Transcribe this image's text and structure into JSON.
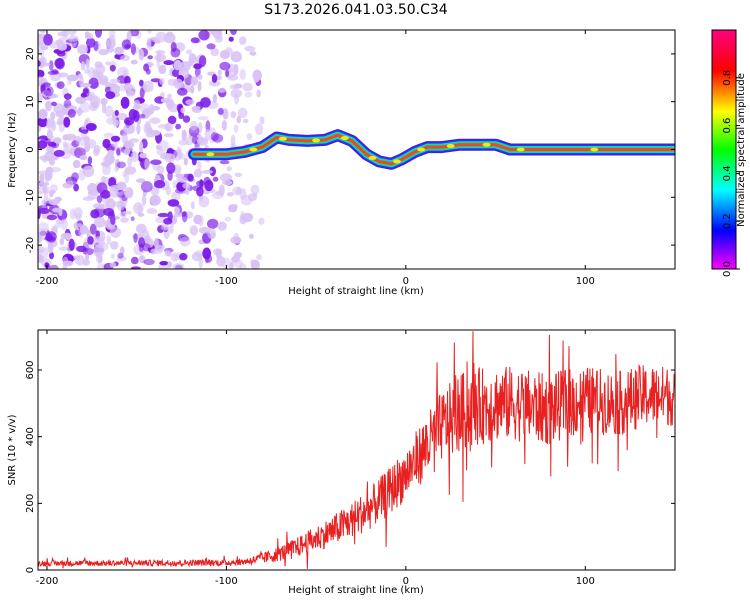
{
  "title": "S173.2026.041.03.50.C34",
  "colors": {
    "signal_line": "#e82020",
    "noise_dark": "#7a18e8",
    "noise_light": "#d8c2f5",
    "axis": "#000000"
  },
  "chart_data": [
    {
      "type": "heatmap",
      "name": "spectrogram",
      "xlabel": "Height of straight line (km)",
      "ylabel": "Frequency (Hz)",
      "xlim": [
        -205,
        150
      ],
      "ylim": [
        -25,
        25
      ],
      "xticks": [
        -200,
        -100,
        0,
        100
      ],
      "yticks": [
        -20,
        -10,
        0,
        10,
        20
      ],
      "tone_track": {
        "x": [
          -118,
          -100,
          -90,
          -80,
          -72,
          -65,
          -55,
          -45,
          -38,
          -30,
          -22,
          -15,
          -8,
          -2,
          5,
          12,
          20,
          30,
          40,
          50,
          58,
          70,
          90,
          120,
          150
        ],
        "freq": [
          -1,
          -1,
          -0.5,
          0.5,
          2.5,
          2,
          1.8,
          2,
          3,
          1.8,
          -1,
          -2.5,
          -3,
          -2,
          -0.5,
          0.5,
          0.5,
          1,
          1,
          1,
          0,
          0,
          0,
          0,
          0
        ]
      },
      "colorbar": {
        "label": "Normalized spectral amplitude",
        "range": [
          0,
          1
        ],
        "ticks": [
          "0.0",
          "0.2",
          "0.4",
          "0.6",
          "0.8"
        ]
      }
    },
    {
      "type": "line",
      "name": "snr",
      "xlabel": "Height of straight line (km)",
      "ylabel": "SNR (10 * v/v)",
      "xlim": [
        -205,
        150
      ],
      "ylim": [
        0,
        720
      ],
      "xticks": [
        -200,
        -100,
        0,
        100
      ],
      "yticks": [
        0,
        200,
        400,
        600
      ],
      "trend": {
        "x": [
          -205,
          -100,
          -90,
          -80,
          -70,
          -60,
          -50,
          -40,
          -30,
          -20,
          -10,
          0,
          10,
          20,
          30,
          40,
          50,
          60,
          70,
          80,
          90,
          100,
          110,
          120,
          130,
          140,
          150
        ],
        "y": [
          20,
          22,
          25,
          35,
          50,
          70,
          95,
          120,
          150,
          185,
          230,
          290,
          360,
          430,
          470,
          490,
          500,
          500,
          490,
          480,
          500,
          510,
          505,
          500,
          520,
          525,
          520
        ]
      },
      "noise_amplitude": [
        {
          "x": -205,
          "amp": 8
        },
        {
          "x": -90,
          "amp": 10
        },
        {
          "x": -60,
          "amp": 30
        },
        {
          "x": 0,
          "amp": 80
        },
        {
          "x": 30,
          "amp": 120
        },
        {
          "x": 150,
          "amp": 90
        }
      ]
    }
  ]
}
